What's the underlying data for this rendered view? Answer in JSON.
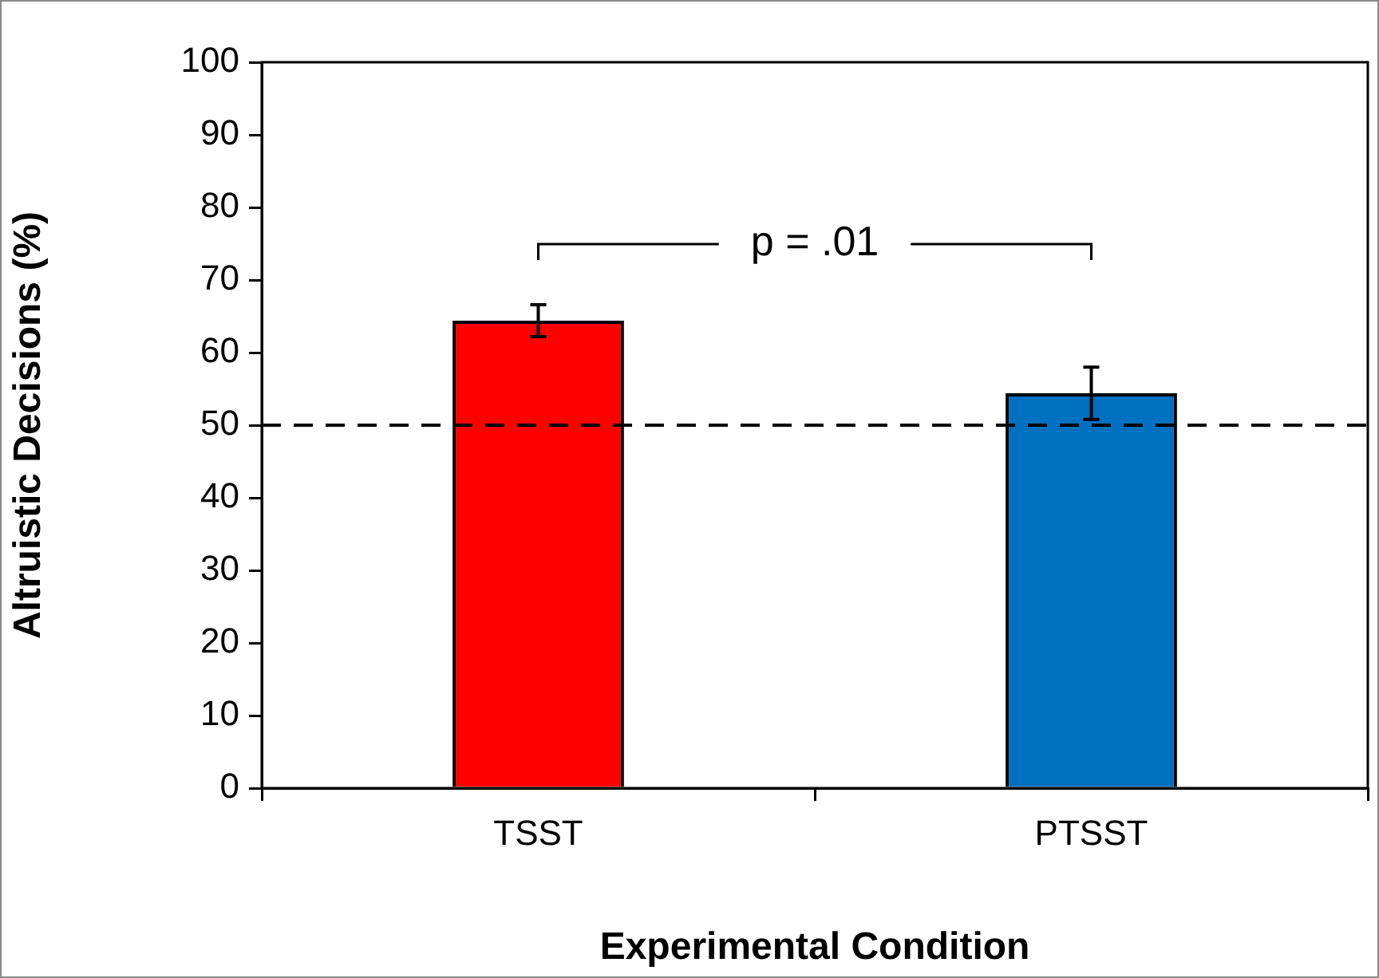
{
  "chart_data": {
    "type": "bar",
    "xlabel": "Experimental Condition",
    "ylabel": "Altruistic Decisions (%)",
    "categories": [
      "TSST",
      "PTSST"
    ],
    "values": [
      64.4,
      54.4
    ],
    "errors": [
      2.2,
      3.6
    ],
    "colors": [
      "#ff0000",
      "#0070c0"
    ],
    "ylim": [
      0,
      100
    ],
    "yticks": [
      0,
      10,
      20,
      30,
      40,
      50,
      60,
      70,
      80,
      90,
      100
    ],
    "ref_lines": [
      {
        "axis": "y",
        "value": 50,
        "line_style": "dashed",
        "color": "#000000"
      }
    ],
    "annotations": [
      "p = .01"
    ],
    "grid": false,
    "legend": false
  }
}
